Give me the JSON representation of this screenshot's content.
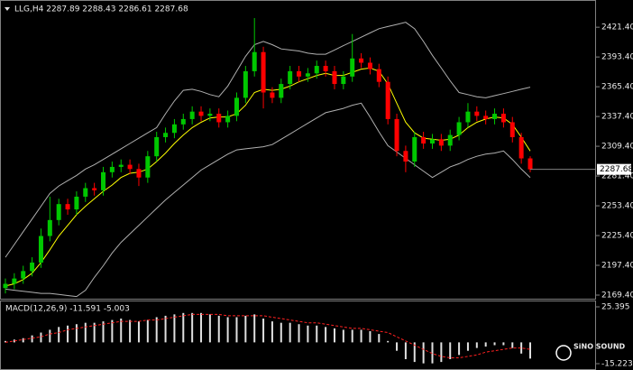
{
  "chart_data": [
    {
      "type": "candlestick",
      "title": "LLG,H4  2287.89 2288.43 2286.61 2287.68",
      "open": [
        2176,
        2180,
        2185,
        2192,
        2200,
        2225,
        2240,
        2255,
        2250,
        2262,
        2270,
        2268,
        2285,
        2290,
        2292,
        2288,
        2280,
        2300,
        2318,
        2322,
        2330,
        2335,
        2342,
        2338,
        2340,
        2332,
        2338,
        2355,
        2380,
        2398,
        2360,
        2355,
        2368,
        2380,
        2375,
        2378,
        2385,
        2380,
        2368,
        2375,
        2392,
        2388,
        2382,
        2370,
        2335,
        2305,
        2295,
        2318,
        2312,
        2316,
        2310,
        2320,
        2332,
        2342,
        2338,
        2335,
        2340,
        2332,
        2318,
        2298
      ],
      "high": [
        2185,
        2190,
        2197,
        2205,
        2232,
        2262,
        2260,
        2260,
        2267,
        2275,
        2275,
        2290,
        2295,
        2297,
        2297,
        2293,
        2305,
        2323,
        2327,
        2335,
        2340,
        2347,
        2347,
        2345,
        2345,
        2343,
        2360,
        2385,
        2430,
        2403,
        2365,
        2373,
        2385,
        2385,
        2383,
        2390,
        2390,
        2385,
        2380,
        2415,
        2397,
        2393,
        2387,
        2375,
        2340,
        2310,
        2323,
        2323,
        2321,
        2321,
        2325,
        2337,
        2350,
        2347,
        2343,
        2345,
        2345,
        2337,
        2322,
        2300
      ],
      "low": [
        2171,
        2175,
        2180,
        2187,
        2195,
        2220,
        2235,
        2245,
        2245,
        2257,
        2263,
        2263,
        2280,
        2285,
        2283,
        2272,
        2275,
        2295,
        2313,
        2317,
        2325,
        2330,
        2333,
        2333,
        2327,
        2327,
        2333,
        2350,
        2375,
        2345,
        2350,
        2350,
        2363,
        2370,
        2370,
        2373,
        2375,
        2363,
        2363,
        2370,
        2383,
        2377,
        2365,
        2330,
        2300,
        2285,
        2290,
        2307,
        2307,
        2305,
        2305,
        2315,
        2327,
        2333,
        2330,
        2330,
        2327,
        2313,
        2293,
        2285
      ],
      "close": [
        2180,
        2185,
        2192,
        2200,
        2225,
        2240,
        2255,
        2250,
        2262,
        2270,
        2268,
        2285,
        2290,
        2292,
        2288,
        2280,
        2300,
        2318,
        2322,
        2330,
        2335,
        2342,
        2338,
        2340,
        2332,
        2338,
        2355,
        2380,
        2398,
        2360,
        2355,
        2368,
        2380,
        2375,
        2378,
        2385,
        2380,
        2368,
        2375,
        2392,
        2388,
        2382,
        2370,
        2335,
        2305,
        2295,
        2318,
        2312,
        2316,
        2310,
        2320,
        2332,
        2342,
        2338,
        2335,
        2340,
        2332,
        2318,
        2298,
        2287.68
      ],
      "up_color": "#00c800",
      "down_color": "#ff0000",
      "series": [
        {
          "color": "#b0b0b0",
          "values": [
            2205,
            2217,
            2229,
            2241,
            2253,
            2265,
            2272,
            2277,
            2282,
            2288,
            2292,
            2297,
            2302,
            2307,
            2312,
            2317,
            2322,
            2327,
            2340,
            2352,
            2362,
            2363,
            2361,
            2358,
            2356,
            2366,
            2380,
            2394,
            2405,
            2408,
            2405,
            2401,
            2400,
            2399,
            2397,
            2396,
            2396,
            2400,
            2404,
            2408,
            2412,
            2416,
            2420,
            2422,
            2424,
            2426,
            2420,
            2408,
            2395,
            2383,
            2371,
            2360,
            2358,
            2356,
            2355,
            2357,
            2359,
            2361,
            2363,
            2365
          ]
        },
        {
          "color": "#b0b0b0",
          "values": [
            2175,
            2174,
            2173,
            2172,
            2171,
            2171,
            2170,
            2169,
            2168,
            2174,
            2186,
            2197,
            2209,
            2219,
            2227,
            2235,
            2243,
            2251,
            2259,
            2266,
            2273,
            2280,
            2287,
            2292,
            2297,
            2302,
            2306,
            2307,
            2308,
            2309,
            2311,
            2316,
            2321,
            2326,
            2331,
            2336,
            2341,
            2343,
            2345,
            2348,
            2350,
            2337,
            2323,
            2310,
            2304,
            2298,
            2292,
            2286,
            2280,
            2285,
            2290,
            2293,
            2297,
            2300,
            2302,
            2303,
            2305,
            2297,
            2288,
            2280
          ]
        },
        {
          "color": "#ffff00",
          "values": [
            2178,
            2180,
            2184,
            2190,
            2200,
            2212,
            2225,
            2235,
            2245,
            2253,
            2260,
            2267,
            2273,
            2280,
            2284,
            2285,
            2288,
            2295,
            2303,
            2312,
            2320,
            2327,
            2332,
            2336,
            2337,
            2337,
            2340,
            2348,
            2360,
            2363,
            2362,
            2363,
            2366,
            2370,
            2373,
            2376,
            2378,
            2376,
            2376,
            2379,
            2382,
            2383,
            2380,
            2368,
            2350,
            2332,
            2322,
            2317,
            2316,
            2315,
            2316,
            2320,
            2327,
            2332,
            2335,
            2337,
            2336,
            2330,
            2318,
            2305
          ]
        }
      ],
      "last_price": 2287.68,
      "ylim": [
        2166,
        2445.3
      ],
      "yticks": [
        {
          "value": 2421.4,
          "label": "2421.40"
        },
        {
          "value": 2393.4,
          "label": "2393.40"
        },
        {
          "value": 2365.4,
          "label": "2365.40"
        },
        {
          "value": 2337.4,
          "label": "2337.40"
        },
        {
          "value": 2309.4,
          "label": "2309.40"
        },
        {
          "value": 2281.4,
          "label": "2281.40"
        },
        {
          "value": 2253.4,
          "label": "2253.40"
        },
        {
          "value": 2225.4,
          "label": "2225.40"
        },
        {
          "value": 2197.4,
          "label": "2197.40"
        },
        {
          "value": 2169.4,
          "label": "2169.40"
        }
      ]
    },
    {
      "type": "bar",
      "title": "MACD(12,26,9) -11.591 -5.003",
      "values": [
        1,
        2,
        3,
        5,
        7,
        9,
        11,
        12,
        13,
        14,
        14,
        15,
        16,
        17,
        16,
        15,
        16,
        18,
        19,
        20,
        21,
        21,
        21,
        20,
        19,
        18,
        18,
        19,
        20,
        17,
        15,
        14,
        14,
        13,
        12,
        12,
        11,
        10,
        9,
        9,
        9,
        8,
        6,
        1,
        -6,
        -12,
        -14,
        -15,
        -15,
        -14,
        -12,
        -9,
        -6,
        -4,
        -3,
        -2,
        -2,
        -4,
        -8,
        -11.591
      ],
      "color": "#e0e0e0",
      "series": [
        {
          "color": "#ff2020",
          "values": [
            0,
            1,
            2,
            3,
            4,
            6,
            7,
            9,
            10,
            11,
            12,
            13,
            14,
            15,
            15,
            15,
            16,
            16,
            17,
            18,
            19,
            20,
            20,
            20,
            20,
            19,
            19,
            19,
            19,
            19,
            18,
            17,
            16,
            15,
            14,
            14,
            13,
            12,
            11,
            10,
            10,
            9,
            8,
            7,
            4,
            1,
            -2,
            -5,
            -8,
            -10,
            -11,
            -11,
            -10,
            -9,
            -7,
            -6,
            -5,
            -4,
            -4,
            -5.003
          ]
        }
      ],
      "ylim": [
        -19.09,
        29.26
      ],
      "yticks": [
        25.395,
        -15.223
      ],
      "watermark": "SiNO SOUND"
    }
  ]
}
